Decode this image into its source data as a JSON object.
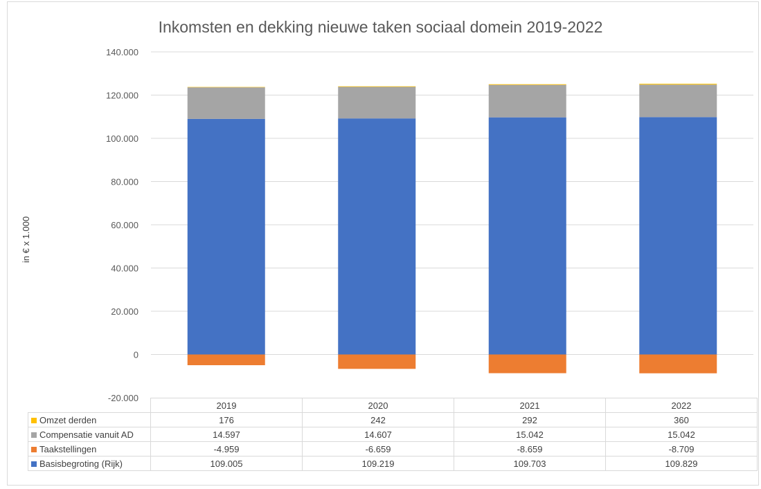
{
  "chart_data": {
    "type": "bar",
    "stacked": true,
    "title": "Inkomsten en dekking nieuwe taken sociaal domein 2019-2022",
    "xlabel": "",
    "ylabel": "in € x 1.000",
    "ylim": [
      -20000,
      140000
    ],
    "yticks": [
      -20000,
      0,
      20000,
      40000,
      60000,
      80000,
      100000,
      120000,
      140000
    ],
    "ytick_labels": [
      "-20.000",
      "0",
      "20.000",
      "40.000",
      "60.000",
      "80.000",
      "100.000",
      "120.000",
      "140.000"
    ],
    "grid": true,
    "legend": "data-table",
    "categories": [
      "2019",
      "2020",
      "2021",
      "2022"
    ],
    "series": [
      {
        "name": "Omzet derden",
        "color": "#FFC000",
        "values": [
          176,
          242,
          292,
          360
        ],
        "labels": [
          "176",
          "242",
          "292",
          "360"
        ]
      },
      {
        "name": "Compensatie vanuit AD",
        "color": "#A5A5A5",
        "values": [
          14597,
          14607,
          15042,
          15042
        ],
        "labels": [
          "14.597",
          "14.607",
          "15.042",
          "15.042"
        ]
      },
      {
        "name": "Taakstellingen",
        "color": "#ED7D31",
        "values": [
          -4959,
          -6659,
          -8659,
          -8709
        ],
        "labels": [
          "-4.959",
          "-6.659",
          "-8.659",
          "-8.709"
        ]
      },
      {
        "name": "Basisbegroting (Rijk)",
        "color": "#4472C4",
        "values": [
          109005,
          109219,
          109703,
          109829
        ],
        "labels": [
          "109.005",
          "109.219",
          "109.703",
          "109.829"
        ]
      }
    ]
  }
}
